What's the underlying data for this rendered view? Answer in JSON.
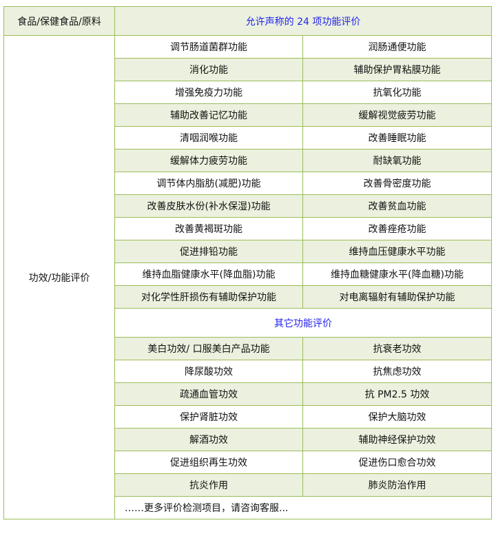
{
  "header": {
    "col1": "食品/保健食品/原料",
    "col2": "允许声称的 24 项功能评价"
  },
  "side_label": "功效/功能评价",
  "allowed_rows": [
    [
      "调节肠道菌群功能",
      "润肠通便功能"
    ],
    [
      "消化功能",
      "辅助保护胃粘膜功能"
    ],
    [
      "增强免疫力功能",
      "抗氧化功能"
    ],
    [
      "辅助改善记忆功能",
      "缓解视觉疲劳功能"
    ],
    [
      "清咽润喉功能",
      "改善睡眠功能"
    ],
    [
      "缓解体力疲劳功能",
      "耐缺氧功能"
    ],
    [
      "调节体内脂肪(减肥)功能",
      "改善骨密度功能"
    ],
    [
      "改善皮肤水份(补水保湿)功能",
      "改善贫血功能"
    ],
    [
      "改善黄褐斑功能",
      "改善痤疮功能"
    ],
    [
      "促进排铅功能",
      "维持血压健康水平功能"
    ],
    [
      "维持血脂健康水平(降血脂)功能",
      "维持血糖健康水平(降血糖)功能"
    ],
    [
      "对化学性肝损伤有辅助保护功能",
      "对电离辐射有辅助保护功能"
    ]
  ],
  "other_title": "其它功能评价",
  "other_rows": [
    [
      "美白功效/ 口服美白产品功能",
      "抗衰老功效"
    ],
    [
      "降尿酸功效",
      "抗焦虑功效"
    ],
    [
      "疏通血管功效",
      "抗 PM2.5 功效"
    ],
    [
      "保护肾脏功效",
      "保护大脑功效"
    ],
    [
      "解酒功效",
      "辅助神经保护功效"
    ],
    [
      "促进组织再生功效",
      "促进伤口愈合功效"
    ],
    [
      "抗炎作用",
      "肺炎防治作用"
    ]
  ],
  "more_text": "……更多评价检测项目，请咨询客服...",
  "colors": {
    "border": "#9bbb59",
    "shade": "#ebf1de",
    "accent_text": "#2222ee"
  }
}
